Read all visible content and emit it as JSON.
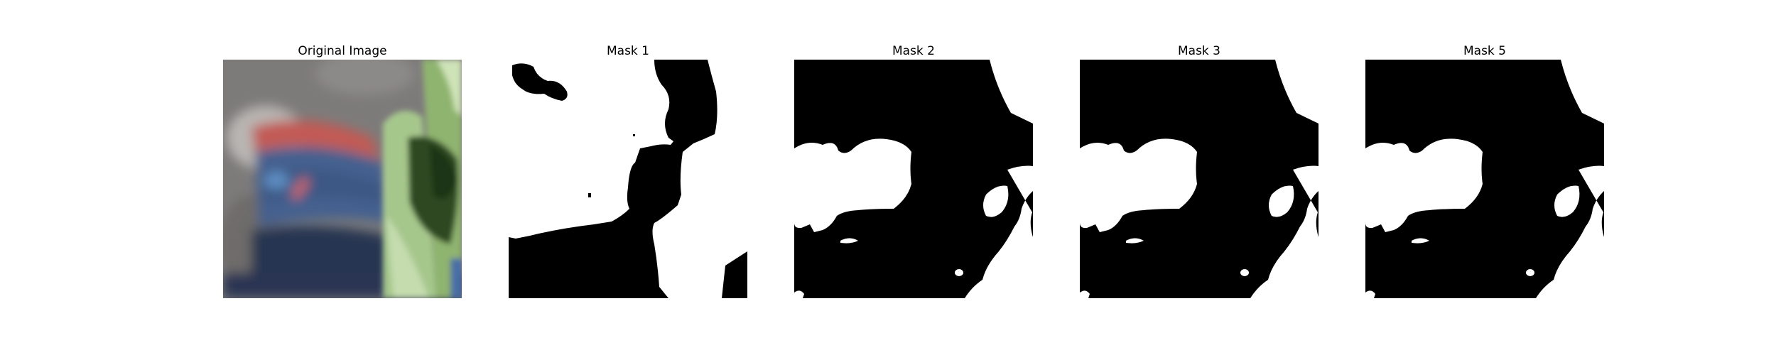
{
  "figure": {
    "panels": [
      {
        "id": "original",
        "title": "Original Image"
      },
      {
        "id": "mask1",
        "title": "Mask 1"
      },
      {
        "id": "mask2",
        "title": "Mask 2"
      },
      {
        "id": "mask3",
        "title": "Mask 3"
      },
      {
        "id": "mask5",
        "title": "Mask 5"
      }
    ]
  },
  "colors": {
    "mask_foreground": "#ffffff",
    "mask_background": "#000000"
  }
}
